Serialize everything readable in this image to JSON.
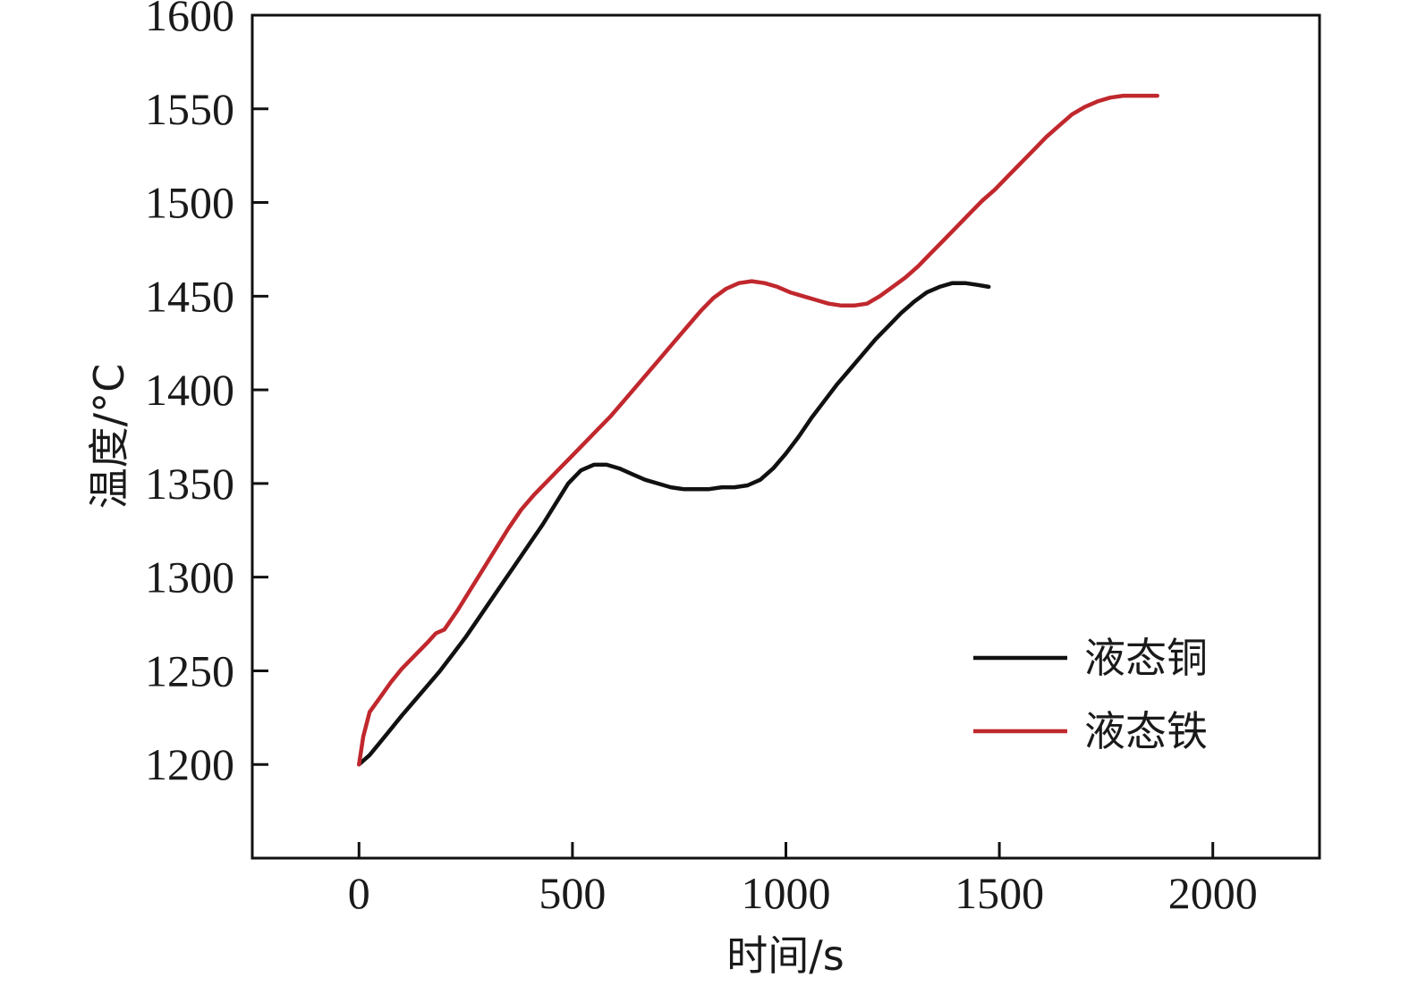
{
  "chart_data": {
    "type": "line",
    "title": "",
    "xlabel": "时间/s",
    "ylabel": "温度/°C",
    "xlim": [
      -250,
      2250
    ],
    "ylim": [
      1150,
      1600
    ],
    "xticks": [
      0,
      500,
      1000,
      1500,
      2000
    ],
    "yticks": [
      1200,
      1250,
      1300,
      1350,
      1400,
      1450,
      1500,
      1550,
      1600
    ],
    "grid": false,
    "legend_position": "bottom-right",
    "series": [
      {
        "name": "液态铜",
        "color": "#111111",
        "x": [
          0,
          25,
          50,
          75,
          100,
          130,
          160,
          190,
          220,
          250,
          280,
          310,
          340,
          370,
          400,
          430,
          460,
          490,
          520,
          550,
          580,
          610,
          640,
          670,
          700,
          730,
          760,
          790,
          820,
          850,
          880,
          910,
          940,
          970,
          1000,
          1030,
          1060,
          1090,
          1120,
          1150,
          1180,
          1210,
          1240,
          1270,
          1300,
          1330,
          1360,
          1390,
          1420,
          1450,
          1475
        ],
        "y": [
          1200,
          1205,
          1212,
          1219,
          1226,
          1234,
          1242,
          1250,
          1259,
          1268,
          1278,
          1288,
          1298,
          1308,
          1318,
          1328,
          1339,
          1350,
          1357,
          1360,
          1360,
          1358,
          1355,
          1352,
          1350,
          1348,
          1347,
          1347,
          1347,
          1348,
          1348,
          1349,
          1352,
          1358,
          1366,
          1375,
          1385,
          1394,
          1403,
          1411,
          1419,
          1427,
          1434,
          1441,
          1447,
          1452,
          1455,
          1457,
          1457,
          1456,
          1455
        ]
      },
      {
        "name": "液态铁",
        "color": "#c0282d",
        "x": [
          0,
          10,
          25,
          50,
          75,
          100,
          130,
          160,
          180,
          200,
          230,
          260,
          290,
          320,
          350,
          380,
          410,
          440,
          470,
          500,
          530,
          560,
          590,
          620,
          650,
          680,
          710,
          740,
          770,
          800,
          830,
          860,
          890,
          920,
          950,
          980,
          1010,
          1040,
          1070,
          1100,
          1130,
          1160,
          1190,
          1220,
          1250,
          1280,
          1310,
          1340,
          1370,
          1400,
          1430,
          1460,
          1490,
          1520,
          1550,
          1580,
          1610,
          1640,
          1670,
          1700,
          1730,
          1760,
          1790,
          1820,
          1850,
          1870
        ],
        "y": [
          1200,
          1215,
          1228,
          1236,
          1244,
          1251,
          1258,
          1265,
          1270,
          1272,
          1282,
          1293,
          1304,
          1315,
          1326,
          1336,
          1344,
          1351,
          1358,
          1365,
          1372,
          1379,
          1386,
          1394,
          1402,
          1410,
          1418,
          1426,
          1434,
          1442,
          1449,
          1454,
          1457,
          1458,
          1457,
          1455,
          1452,
          1450,
          1448,
          1446,
          1445,
          1445,
          1446,
          1450,
          1455,
          1460,
          1466,
          1473,
          1480,
          1487,
          1494,
          1501,
          1507,
          1514,
          1521,
          1528,
          1535,
          1541,
          1547,
          1551,
          1554,
          1556,
          1557,
          1557,
          1557,
          1557
        ]
      }
    ]
  }
}
